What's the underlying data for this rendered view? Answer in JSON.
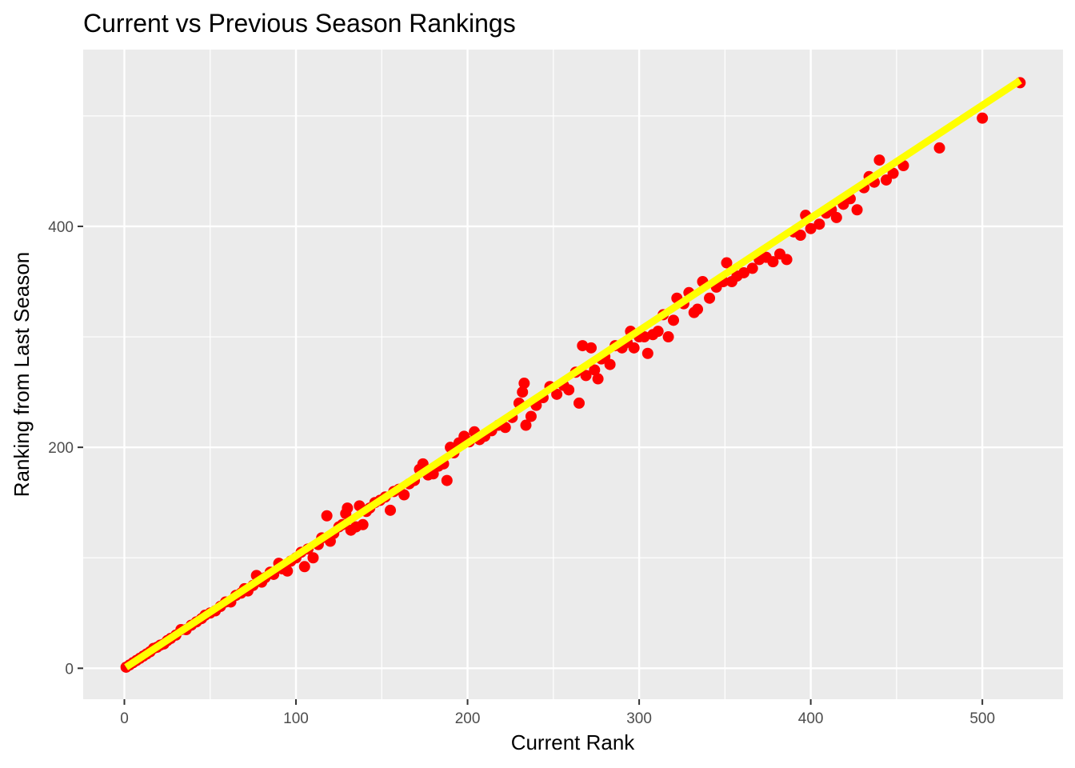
{
  "chart_data": {
    "type": "scatter",
    "title": "Current vs Previous Season Rankings",
    "xlabel": "Current Rank",
    "ylabel": "Ranking from Last Season",
    "xlim": [
      -24,
      547
    ],
    "ylim": [
      -28,
      560
    ],
    "x_ticks": [
      0,
      100,
      200,
      300,
      400,
      500
    ],
    "y_ticks": [
      0,
      200,
      400
    ],
    "grid": true,
    "legend": "none",
    "colors": {
      "panel_background": "#ebebeb",
      "grid_line": "#ffffff",
      "points": "#ff0000",
      "fit_line": "#ffff00"
    },
    "points": [
      [
        1,
        1
      ],
      [
        3,
        3
      ],
      [
        5,
        5
      ],
      [
        7,
        7
      ],
      [
        9,
        9
      ],
      [
        11,
        11
      ],
      [
        13,
        13
      ],
      [
        15,
        15
      ],
      [
        17,
        18
      ],
      [
        19,
        19
      ],
      [
        21,
        21
      ],
      [
        23,
        22
      ],
      [
        25,
        25
      ],
      [
        27,
        27
      ],
      [
        30,
        30
      ],
      [
        33,
        35
      ],
      [
        36,
        35
      ],
      [
        39,
        39
      ],
      [
        42,
        42
      ],
      [
        45,
        45
      ],
      [
        47,
        48
      ],
      [
        50,
        50
      ],
      [
        53,
        52
      ],
      [
        56,
        56
      ],
      [
        59,
        60
      ],
      [
        62,
        60
      ],
      [
        65,
        66
      ],
      [
        68,
        68
      ],
      [
        70,
        72
      ],
      [
        72,
        70
      ],
      [
        75,
        75
      ],
      [
        77,
        84
      ],
      [
        80,
        78
      ],
      [
        82,
        82
      ],
      [
        85,
        87
      ],
      [
        87,
        85
      ],
      [
        90,
        95
      ],
      [
        92,
        90
      ],
      [
        95,
        88
      ],
      [
        97,
        97
      ],
      [
        100,
        100
      ],
      [
        103,
        105
      ],
      [
        105,
        92
      ],
      [
        107,
        108
      ],
      [
        110,
        100
      ],
      [
        113,
        112
      ],
      [
        115,
        118
      ],
      [
        118,
        138
      ],
      [
        120,
        115
      ],
      [
        122,
        122
      ],
      [
        125,
        128
      ],
      [
        127,
        130
      ],
      [
        129,
        140
      ],
      [
        130,
        145
      ],
      [
        132,
        125
      ],
      [
        135,
        128
      ],
      [
        137,
        147
      ],
      [
        139,
        130
      ],
      [
        141,
        142
      ],
      [
        143,
        145
      ],
      [
        146,
        150
      ],
      [
        149,
        152
      ],
      [
        152,
        155
      ],
      [
        155,
        143
      ],
      [
        157,
        160
      ],
      [
        160,
        162
      ],
      [
        163,
        157
      ],
      [
        166,
        167
      ],
      [
        169,
        170
      ],
      [
        172,
        180
      ],
      [
        174,
        185
      ],
      [
        177,
        175
      ],
      [
        180,
        176
      ],
      [
        183,
        183
      ],
      [
        186,
        185
      ],
      [
        188,
        170
      ],
      [
        190,
        200
      ],
      [
        192,
        195
      ],
      [
        195,
        204
      ],
      [
        198,
        210
      ],
      [
        201,
        205
      ],
      [
        204,
        214
      ],
      [
        207,
        207
      ],
      [
        210,
        210
      ],
      [
        214,
        215
      ],
      [
        218,
        220
      ],
      [
        222,
        218
      ],
      [
        226,
        227
      ],
      [
        230,
        240
      ],
      [
        232,
        250
      ],
      [
        233,
        258
      ],
      [
        234,
        220
      ],
      [
        237,
        228
      ],
      [
        240,
        238
      ],
      [
        244,
        245
      ],
      [
        248,
        255
      ],
      [
        252,
        248
      ],
      [
        256,
        256
      ],
      [
        259,
        252
      ],
      [
        263,
        268
      ],
      [
        265,
        240
      ],
      [
        267,
        292
      ],
      [
        269,
        265
      ],
      [
        272,
        290
      ],
      [
        274,
        270
      ],
      [
        276,
        262
      ],
      [
        278,
        280
      ],
      [
        280,
        282
      ],
      [
        283,
        275
      ],
      [
        286,
        292
      ],
      [
        290,
        290
      ],
      [
        293,
        295
      ],
      [
        295,
        305
      ],
      [
        297,
        290
      ],
      [
        300,
        300
      ],
      [
        303,
        300
      ],
      [
        305,
        285
      ],
      [
        308,
        302
      ],
      [
        311,
        305
      ],
      [
        314,
        320
      ],
      [
        317,
        300
      ],
      [
        320,
        315
      ],
      [
        322,
        335
      ],
      [
        326,
        330
      ],
      [
        329,
        340
      ],
      [
        332,
        322
      ],
      [
        334,
        325
      ],
      [
        337,
        350
      ],
      [
        341,
        335
      ],
      [
        345,
        345
      ],
      [
        349,
        350
      ],
      [
        351,
        367
      ],
      [
        354,
        350
      ],
      [
        357,
        355
      ],
      [
        361,
        358
      ],
      [
        366,
        362
      ],
      [
        370,
        370
      ],
      [
        374,
        372
      ],
      [
        378,
        368
      ],
      [
        382,
        375
      ],
      [
        386,
        370
      ],
      [
        390,
        395
      ],
      [
        394,
        392
      ],
      [
        397,
        410
      ],
      [
        400,
        398
      ],
      [
        405,
        402
      ],
      [
        409,
        412
      ],
      [
        412,
        415
      ],
      [
        415,
        408
      ],
      [
        419,
        420
      ],
      [
        423,
        425
      ],
      [
        427,
        415
      ],
      [
        431,
        435
      ],
      [
        434,
        445
      ],
      [
        437,
        440
      ],
      [
        440,
        460
      ],
      [
        444,
        442
      ],
      [
        448,
        448
      ],
      [
        454,
        455
      ],
      [
        475,
        471
      ],
      [
        500,
        498
      ],
      [
        522,
        530
      ]
    ],
    "fit_line": {
      "x": [
        1,
        522
      ],
      "y": [
        1,
        532
      ]
    }
  }
}
